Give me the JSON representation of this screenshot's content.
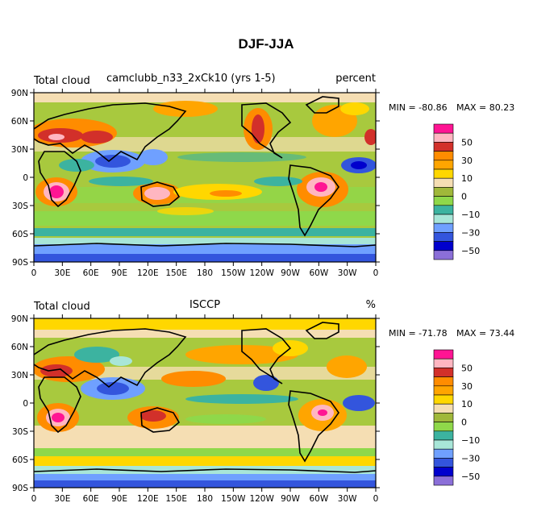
{
  "figure": {
    "title": "DJF-JJA"
  },
  "panels": [
    {
      "variable": "Total cloud",
      "case": "camclubb_n33_2xCk10 (yrs 1-5)",
      "units": "percent",
      "min_text": "MIN = -80.86",
      "max_text": "MAX =  80.23"
    },
    {
      "variable": "Total cloud",
      "case": "ISCCP",
      "units": "%",
      "min_text": "MIN = -71.78",
      "max_text": "MAX =  73.44"
    }
  ],
  "map": {
    "lat_ticks": [
      "90N",
      "60N",
      "30N",
      "0",
      "30S",
      "60S",
      "90S"
    ],
    "lon_ticks": [
      "0",
      "30E",
      "60E",
      "90E",
      "120E",
      "150E",
      "180",
      "150W",
      "120W",
      "90W",
      "60W",
      "30W",
      "0"
    ]
  },
  "colorbar": {
    "labels": [
      "50",
      "30",
      "10",
      "0",
      "−10",
      "−30",
      "−50"
    ],
    "colors": [
      "#ff1493",
      "#ffb6c1",
      "#d2302a",
      "#ff8c00",
      "#ffa500",
      "#ffd700",
      "#f5deb3",
      "#a0b83a",
      "#8fd84a",
      "#3cb3a0",
      "#a8e6d8",
      "#6fa0ff",
      "#3355dd",
      "#0000cd",
      "#8b6fd8"
    ]
  }
}
